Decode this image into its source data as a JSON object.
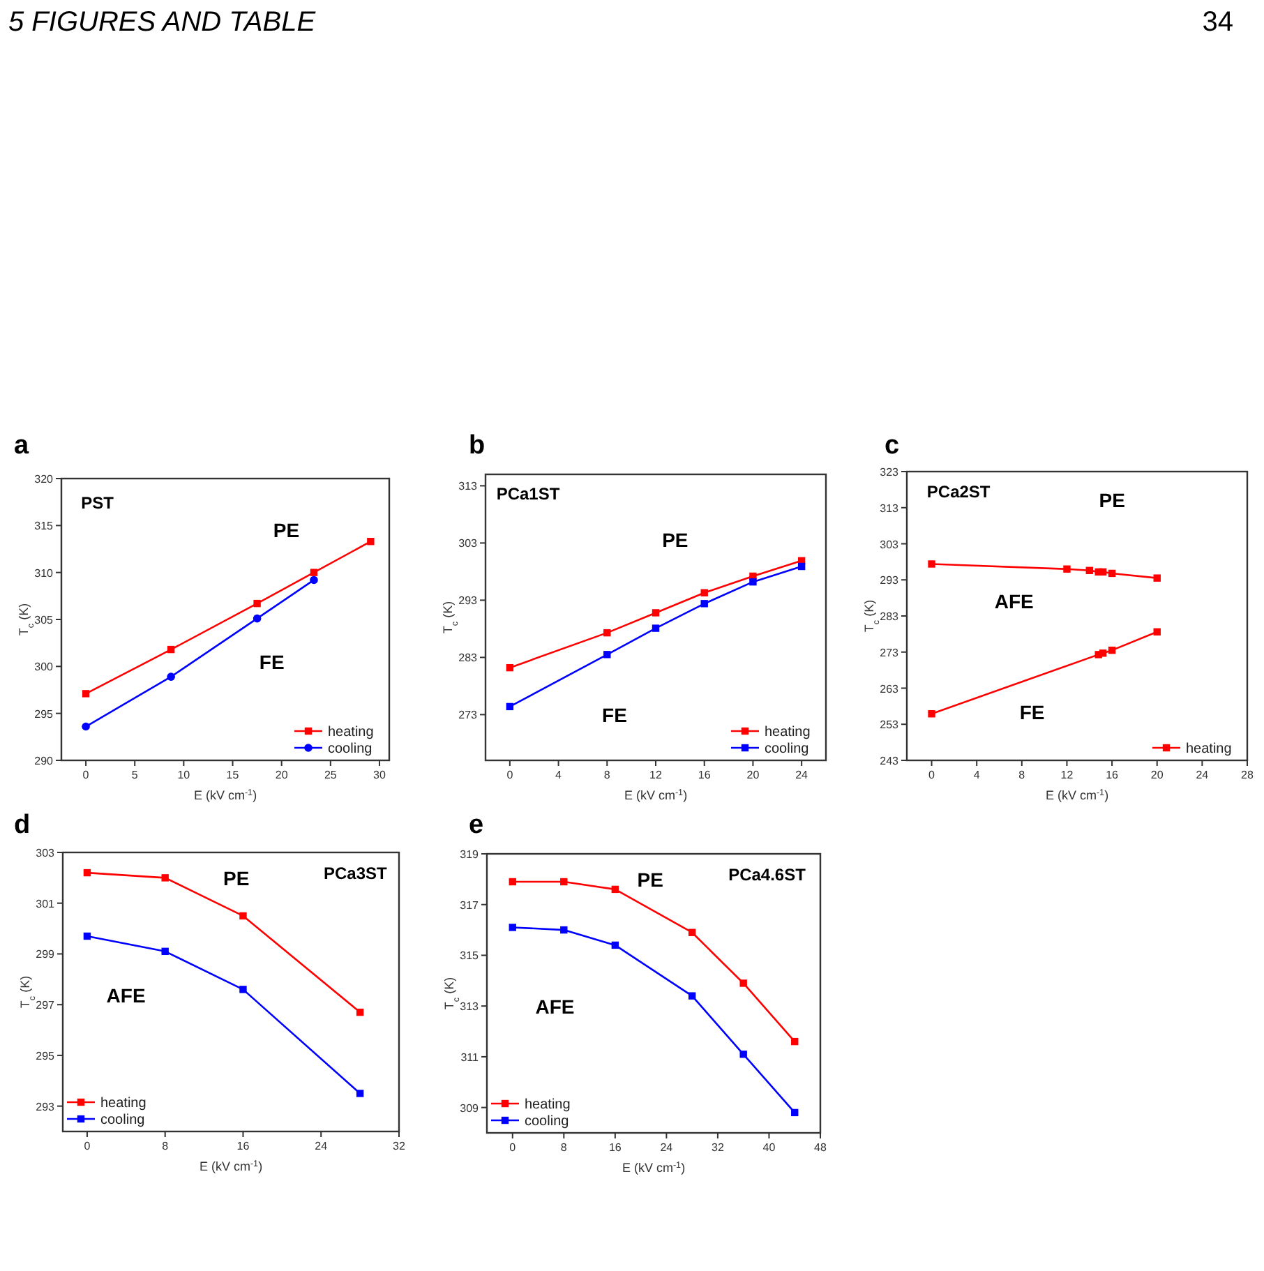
{
  "chart_data": [
    {
      "type": "other",
      "title": "5 FIGURES AND TABLE",
      "annotations": [
        "34"
      ]
    },
    {
      "type": "line",
      "title": "a",
      "xlabel": "E (kV cm$^{-1}$)",
      "ylabel": "T$_{c}$ (K)",
      "xlim": [
        -2.5,
        31
      ],
      "xticks": [
        0,
        5,
        10,
        15,
        20,
        25,
        30
      ],
      "ylim": [
        290,
        320
      ],
      "yticks": [
        290,
        295,
        300,
        305,
        310,
        315,
        320
      ],
      "legend": "bottom right",
      "series": [
        {
          "name": "heating",
          "color": "#ff0000",
          "marker": "square",
          "x": [
            0,
            8.7,
            17.5,
            23.3,
            29.1
          ],
          "values": [
            297.1,
            301.8,
            306.7,
            310,
            313.3
          ]
        },
        {
          "name": "cooling",
          "color": "#0000ff",
          "marker": "circle",
          "x": [
            0,
            8.7,
            17.5,
            23.3
          ],
          "values": [
            293.6,
            298.9,
            305.1,
            309.2
          ]
        }
      ],
      "annotations": [
        "PST",
        "PE",
        "FE"
      ]
    },
    {
      "type": "line",
      "title": "b",
      "xlabel": "E (kV cm$^{-1}$)",
      "ylabel": "T$_{c}$ (K)",
      "xlim": [
        -2,
        26
      ],
      "xticks": [
        0,
        4,
        8,
        12,
        16,
        20,
        24
      ],
      "ylim": [
        265,
        315
      ],
      "yticks": [
        273,
        283,
        293,
        303,
        313
      ],
      "legend": "bottom right",
      "series": [
        {
          "name": "heating",
          "color": "#ff0000",
          "marker": "square",
          "x": [
            0,
            8,
            12,
            16,
            20,
            24
          ],
          "values": [
            281.2,
            287.3,
            290.8,
            294.3,
            297.2,
            299.9
          ]
        },
        {
          "name": "cooling",
          "color": "#0000ff",
          "marker": "square",
          "x": [
            0,
            8,
            12,
            16,
            20,
            24
          ],
          "values": [
            274.4,
            283.5,
            288.1,
            292.4,
            296.2,
            298.9
          ]
        }
      ],
      "annotations": [
        "PCa1ST",
        "PE",
        "FE"
      ]
    },
    {
      "type": "line",
      "title": "c",
      "xlabel": "E (kV cm$^{-1}$)",
      "ylabel": "T$_{c}$ (K)",
      "xlim": [
        -2.2,
        28
      ],
      "xticks": [
        0,
        4,
        8,
        12,
        16,
        20,
        24,
        28
      ],
      "ylim": [
        243,
        323
      ],
      "yticks": [
        243,
        253,
        263,
        273,
        283,
        293,
        303,
        313,
        323
      ],
      "legend": "bottom right",
      "series": [
        {
          "name": "heating",
          "color": "#ff0000",
          "marker": "square",
          "x": [
            0,
            12,
            14,
            14.8,
            15.2,
            16,
            20
          ],
          "values": [
            297.4,
            296,
            295.6,
            295.2,
            295.2,
            294.8,
            293.5
          ]
        },
        {
          "color": "#ff0000",
          "marker": "square",
          "x": [
            0,
            14.8,
            15.2,
            16,
            20
          ],
          "values": [
            255.9,
            272.3,
            272.7,
            273.5,
            278.6
          ]
        }
      ],
      "annotations": [
        "PCa2ST",
        "PE",
        "AFE",
        "FE"
      ]
    },
    {
      "type": "line",
      "title": "d",
      "xlabel": "E (kV cm$^{-1}$)",
      "ylabel": "T$_{c}$ (K)",
      "xlim": [
        -2.5,
        32
      ],
      "xticks": [
        0,
        8,
        16,
        24,
        32
      ],
      "ylim": [
        292,
        303
      ],
      "yticks": [
        293,
        295,
        297,
        299,
        301,
        303
      ],
      "legend": "bottom left",
      "series": [
        {
          "name": "heating",
          "color": "#ff0000",
          "marker": "square",
          "x": [
            0,
            8,
            16,
            28
          ],
          "values": [
            302.2,
            302,
            300.5,
            296.7
          ]
        },
        {
          "name": "cooling",
          "color": "#0000ff",
          "marker": "square",
          "x": [
            0,
            8,
            16,
            28
          ],
          "values": [
            299.7,
            299.1,
            297.6,
            293.5
          ]
        }
      ],
      "annotations": [
        "PCa3ST",
        "PE",
        "AFE"
      ]
    },
    {
      "type": "line",
      "title": "e",
      "xlabel": "E (kV cm$^{-1}$)",
      "ylabel": "T$_{c}$ (K)",
      "xlim": [
        -4,
        48
      ],
      "xticks": [
        0,
        8,
        16,
        24,
        32,
        40,
        48
      ],
      "ylim": [
        308,
        319
      ],
      "yticks": [
        309,
        311,
        313,
        315,
        317,
        319
      ],
      "legend": "bottom left",
      "series": [
        {
          "name": "heating",
          "color": "#ff0000",
          "marker": "square",
          "x": [
            0,
            8,
            16,
            28,
            36,
            44
          ],
          "values": [
            317.9,
            317.9,
            317.6,
            315.9,
            313.9,
            311.6
          ]
        },
        {
          "name": "cooling",
          "color": "#0000ff",
          "marker": "square",
          "x": [
            0,
            8,
            16,
            28,
            36,
            44
          ],
          "values": [
            316.1,
            316,
            315.4,
            313.4,
            311.1,
            308.8
          ]
        }
      ],
      "annotations": [
        "PCa4.6ST",
        "PE",
        "AFE"
      ]
    }
  ]
}
